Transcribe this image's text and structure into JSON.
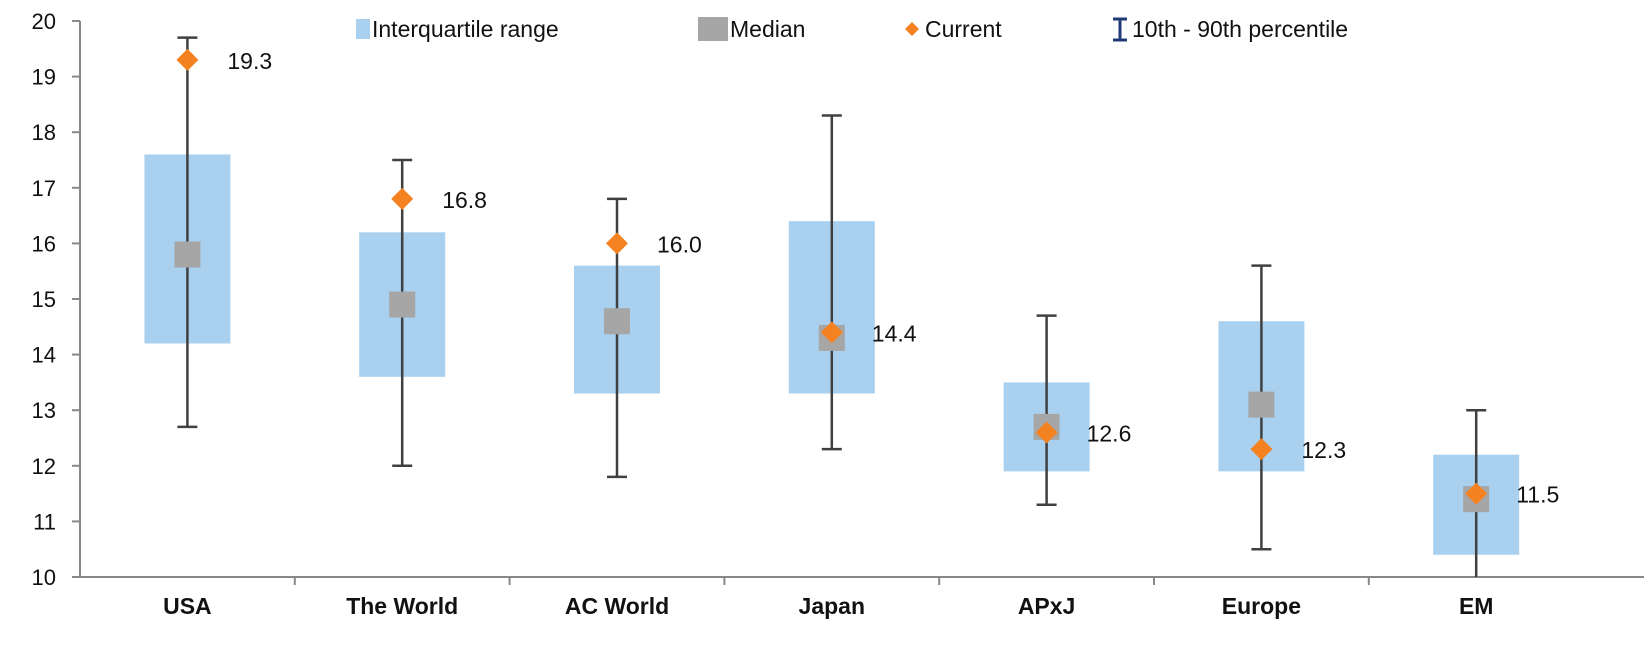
{
  "chart_data": {
    "type": "box",
    "y_ticks": [
      "10",
      "11",
      "12",
      "13",
      "14",
      "15",
      "16",
      "17",
      "18",
      "19",
      "20"
    ],
    "ylim": [
      10,
      20
    ],
    "grid": false,
    "legend_position": "top",
    "legend": {
      "iqr": "Interquartile range",
      "median": "Median",
      "current": "Current",
      "whisker": "10th - 90th percentile"
    },
    "colors": {
      "iqr": "#a9d1ef",
      "median": "#a6a6a6",
      "current": "#f58220",
      "whisker": "#404040",
      "whisker_legend": "#1f3a78"
    },
    "categories": [
      {
        "label": "USA",
        "p10": 12.7,
        "q1": 14.2,
        "median": 15.8,
        "q3": 17.6,
        "p90": 19.7,
        "current": 19.3,
        "current_label": "19.3"
      },
      {
        "label": "The World",
        "p10": 12.0,
        "q1": 13.6,
        "median": 14.9,
        "q3": 16.2,
        "p90": 17.5,
        "current": 16.8,
        "current_label": "16.8"
      },
      {
        "label": "AC World",
        "p10": 11.8,
        "q1": 13.3,
        "median": 14.6,
        "q3": 15.6,
        "p90": 16.8,
        "current": 16.0,
        "current_label": "16.0"
      },
      {
        "label": "Japan",
        "p10": 12.3,
        "q1": 13.3,
        "median": 14.3,
        "q3": 16.4,
        "p90": 18.3,
        "current": 14.4,
        "current_label": "14.4"
      },
      {
        "label": "APxJ",
        "p10": 11.3,
        "q1": 11.9,
        "median": 12.7,
        "q3": 13.5,
        "p90": 14.7,
        "current": 12.6,
        "current_label": "12.6"
      },
      {
        "label": "Europe",
        "p10": 10.5,
        "q1": 11.9,
        "median": 13.1,
        "q3": 14.6,
        "p90": 15.6,
        "current": 12.3,
        "current_label": "12.3"
      },
      {
        "label": "EM",
        "p10": 10.0,
        "q1": 10.4,
        "median": 11.4,
        "q3": 12.2,
        "p90": 13.0,
        "current": 11.5,
        "current_label": "11.5"
      }
    ]
  }
}
